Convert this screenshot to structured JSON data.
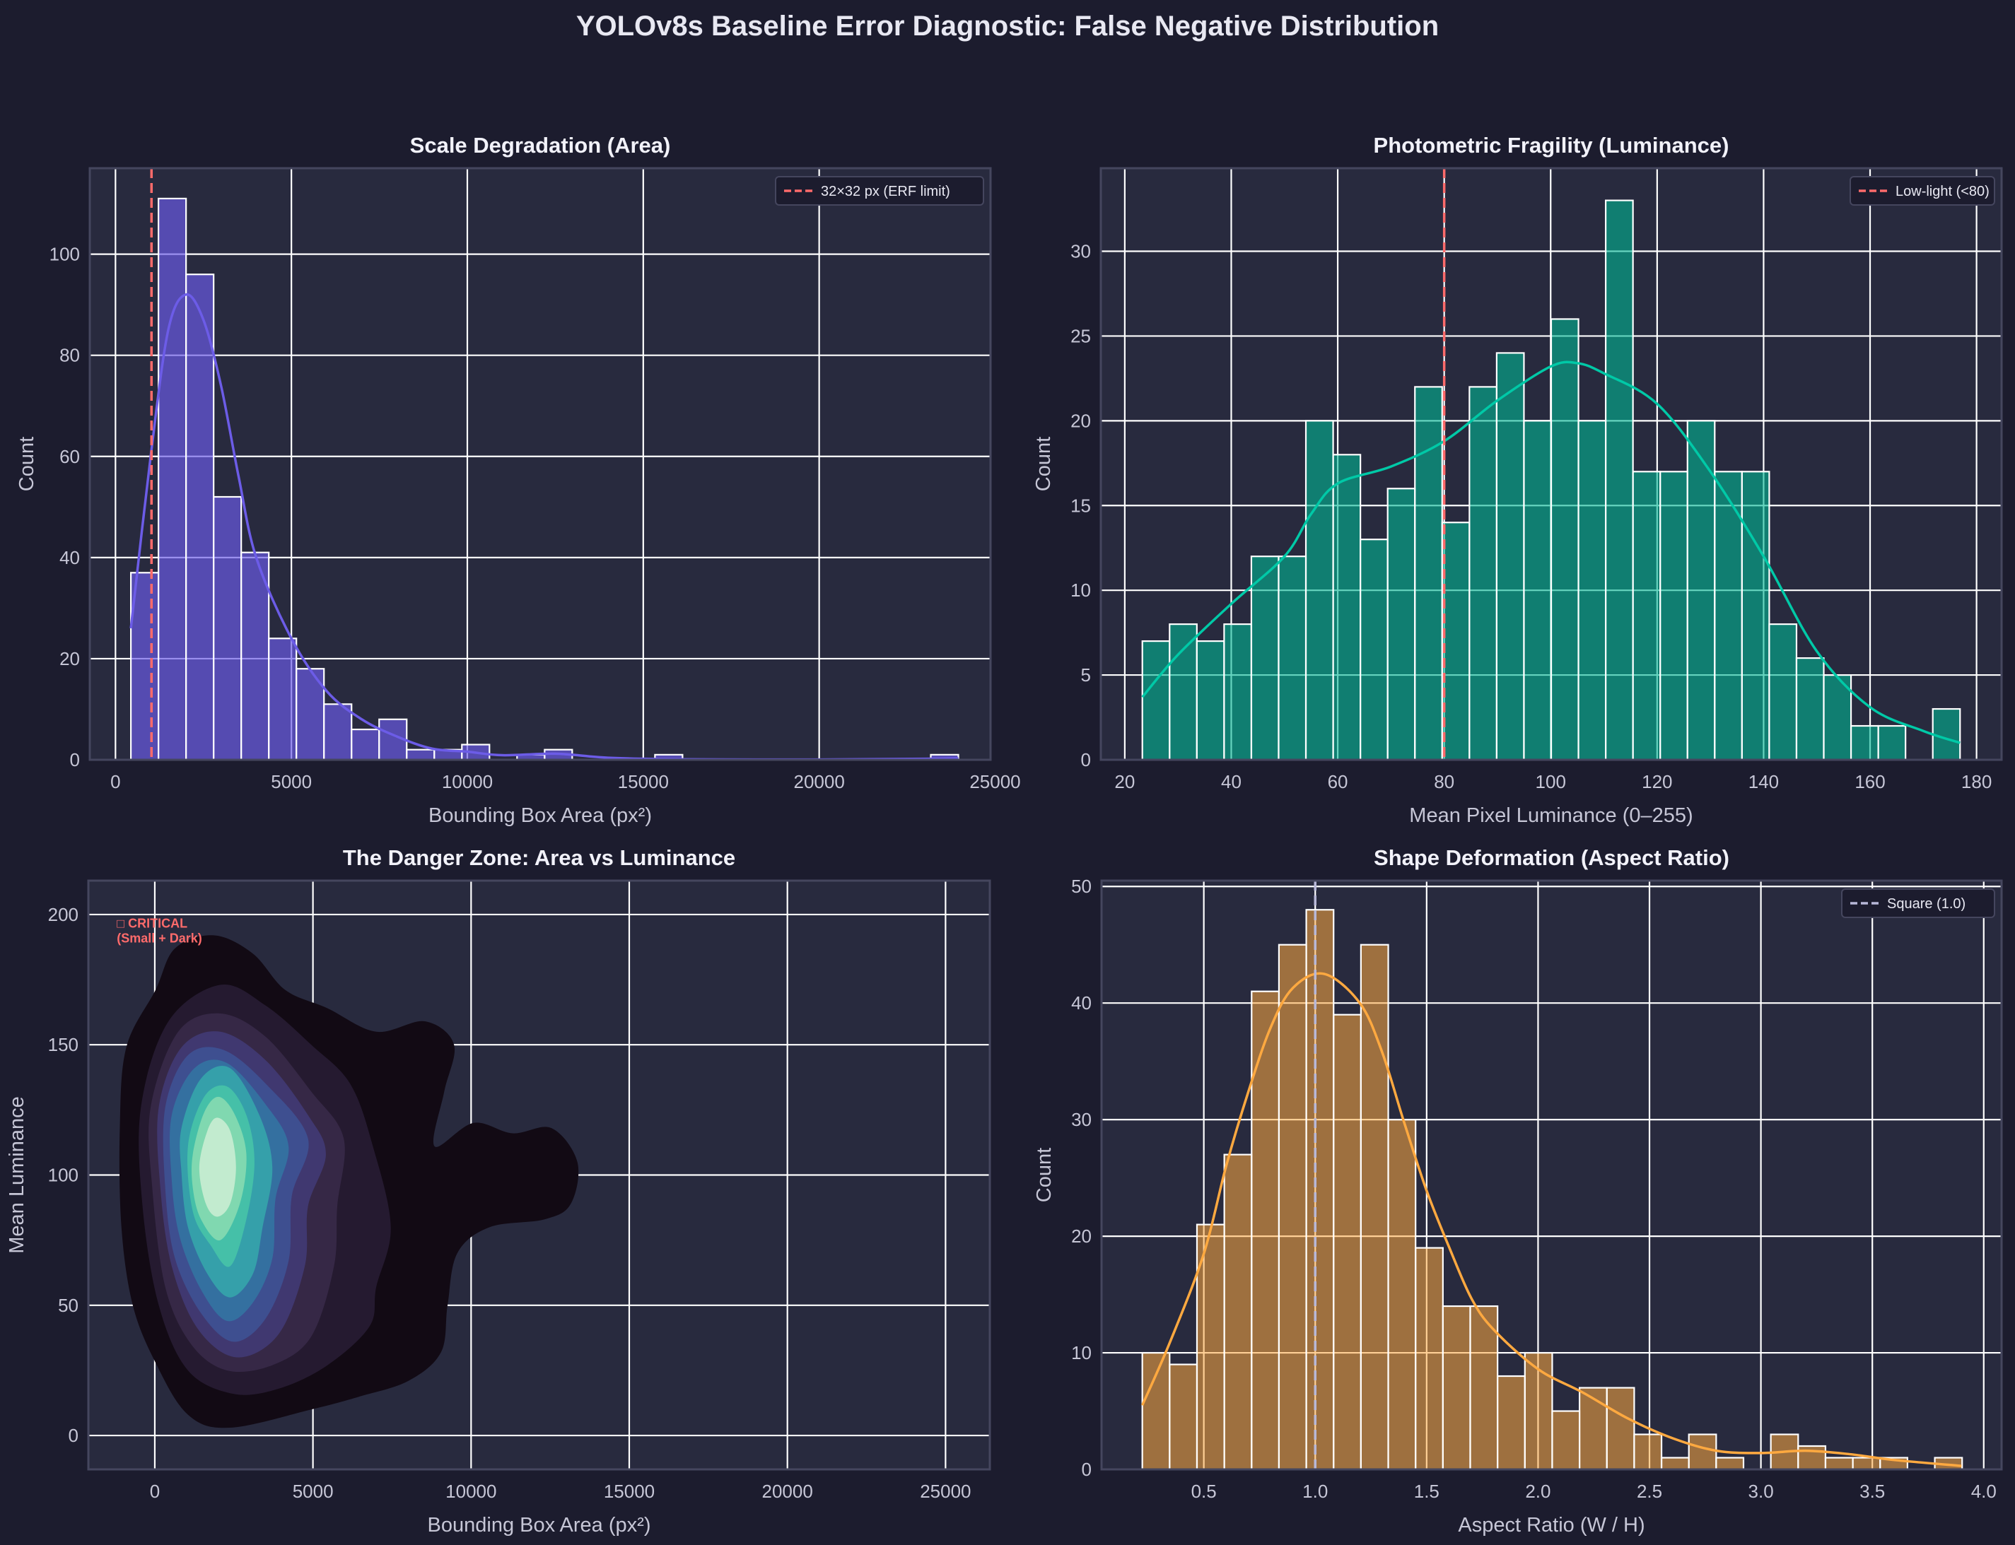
{
  "figure": {
    "title": "YOLOv8s Baseline Error Diagnostic: False Negative Distribution",
    "background": "#1c1c2e",
    "axes_background": "#282a3e",
    "grid_color": "#ffffff"
  },
  "chart_data": [
    {
      "id": "area",
      "type": "bar",
      "title": "Scale Degradation (Area)",
      "xlabel": "Bounding Box Area (px²)",
      "ylabel": "Count",
      "xlim": [
        -730,
        24870
      ],
      "ylim": [
        0,
        117
      ],
      "xticks": [
        0,
        5000,
        10000,
        15000,
        20000,
        25000
      ],
      "yticks": [
        0,
        20,
        40,
        60,
        80,
        100
      ],
      "grid": true,
      "bin_range": [
        438,
        23956
      ],
      "counts": [
        37,
        111,
        96,
        52,
        41,
        24,
        18,
        11,
        6,
        8,
        2,
        2,
        3,
        0,
        1,
        2,
        0,
        0,
        0,
        1,
        0,
        0,
        0,
        0,
        0,
        0,
        0,
        0,
        0,
        1
      ],
      "bar_color": "#6c5ce7",
      "kde_color": "#6c5ce7",
      "kde": [
        [
          438,
          26
        ],
        [
          1000,
          60
        ],
        [
          1500,
          85
        ],
        [
          2000,
          92
        ],
        [
          2500,
          87
        ],
        [
          3000,
          74
        ],
        [
          3500,
          56
        ],
        [
          4000,
          40
        ],
        [
          5000,
          24
        ],
        [
          6000,
          13.6
        ],
        [
          7000,
          8
        ],
        [
          8000,
          4.6
        ],
        [
          9000,
          2.2
        ],
        [
          10000,
          1.6
        ],
        [
          11000,
          0.9
        ],
        [
          12500,
          1.2
        ],
        [
          14000,
          0.4
        ],
        [
          16000,
          0.1
        ],
        [
          20000,
          0.05
        ],
        [
          23000,
          0.2
        ],
        [
          23956,
          0.3
        ]
      ],
      "reference_line": {
        "x": 1024,
        "label": "32×32 px (ERF limit)",
        "color": "#ff6b6b"
      },
      "legend": "top-right"
    },
    {
      "id": "luminance",
      "type": "bar",
      "title": "Photometric Fragility (Luminance)",
      "xlabel": "Mean Pixel Luminance (0–255)",
      "ylabel": "Count",
      "xlim": [
        15.5,
        184.7
      ],
      "ylim": [
        0,
        34.9
      ],
      "xticks": [
        20,
        40,
        60,
        80,
        100,
        120,
        140,
        160,
        180
      ],
      "yticks": [
        0,
        5,
        10,
        15,
        20,
        25,
        30
      ],
      "grid": true,
      "bin_range": [
        23.3,
        176.9
      ],
      "counts": [
        7,
        8,
        7,
        8,
        12,
        12,
        20,
        18,
        13,
        16,
        22,
        14,
        22,
        24,
        20,
        26,
        20,
        33,
        17,
        17,
        20,
        17,
        17,
        8,
        6,
        5,
        2,
        2,
        0,
        3
      ],
      "bar_color": "#00b894",
      "kde_color": "#00c9a7",
      "kde": [
        [
          23.3,
          3.7
        ],
        [
          30,
          6.2
        ],
        [
          40,
          9.2
        ],
        [
          50,
          12
        ],
        [
          55,
          14.5
        ],
        [
          60,
          16.3
        ],
        [
          70,
          17.3
        ],
        [
          80,
          18.8
        ],
        [
          90,
          21.2
        ],
        [
          100,
          23.2
        ],
        [
          105,
          23.4
        ],
        [
          110,
          22.8
        ],
        [
          120,
          21
        ],
        [
          130,
          17
        ],
        [
          140,
          12
        ],
        [
          150,
          6.4
        ],
        [
          160,
          3.1
        ],
        [
          170,
          1.7
        ],
        [
          176.9,
          1.0
        ]
      ],
      "reference_line": {
        "x": 80,
        "label": "Low-light (<80)",
        "color": "#ff6b6b"
      },
      "legend": "top-right"
    },
    {
      "id": "danger",
      "type": "contour",
      "title": "The Danger Zone: Area vs Luminance",
      "xlabel": "Bounding Box Area (px²)",
      "ylabel": "Mean Luminance",
      "xlim": [
        -2100,
        26400
      ],
      "ylim": [
        -13,
        213
      ],
      "xticks": [
        0,
        5000,
        10000,
        15000,
        20000,
        25000
      ],
      "yticks": [
        0,
        50,
        100,
        150,
        200
      ],
      "grid": true,
      "annotation": {
        "line1": "□ CRITICAL",
        "line2": "(Small + Dark)",
        "x": -1200,
        "y": 195,
        "color": "#ff6b6b"
      },
      "level_colors": [
        "#120a14",
        "#251a30",
        "#362846",
        "#403870",
        "#3e4f90",
        "#3470a0",
        "#35a0aa",
        "#45c0a8",
        "#80d8b0",
        "#c2ebcf"
      ],
      "levels": [
        [
          [
            -1106,
            118
          ],
          [
            -901,
            149
          ],
          [
            22,
            171
          ],
          [
            638,
            187
          ],
          [
            1869,
            192
          ],
          [
            3100,
            185
          ],
          [
            4126,
            171
          ],
          [
            5460,
            164
          ],
          [
            7000,
            155
          ],
          [
            8538,
            159
          ],
          [
            9460,
            150
          ],
          [
            9150,
            132
          ],
          [
            8845,
            111
          ],
          [
            10077,
            120
          ],
          [
            11308,
            116
          ],
          [
            12540,
            118
          ],
          [
            13360,
            105
          ],
          [
            13155,
            89
          ],
          [
            12334,
            83
          ],
          [
            10590,
            80
          ],
          [
            9564,
            70
          ],
          [
            9256,
            50
          ],
          [
            9050,
            32
          ],
          [
            8025,
            21
          ],
          [
            6486,
            15
          ],
          [
            4947,
            10
          ],
          [
            2382,
            3
          ],
          [
            1048,
            8
          ],
          [
            22,
            28
          ],
          [
            -696,
            50
          ],
          [
            -1055,
            80
          ]
        ],
        [
          [
            -439,
            126
          ],
          [
            433,
            159
          ],
          [
            2074,
            173
          ],
          [
            3510,
            165
          ],
          [
            4947,
            150
          ],
          [
            6178,
            135
          ],
          [
            6896,
            111
          ],
          [
            7461,
            80
          ],
          [
            7000,
            57
          ],
          [
            6794,
            42
          ],
          [
            5460,
            27
          ],
          [
            3921,
            18
          ],
          [
            2485,
            16
          ],
          [
            1048,
            25
          ],
          [
            125,
            50
          ],
          [
            -388,
            88
          ]
        ],
        [
          [
            -132,
            126
          ],
          [
            740,
            155
          ],
          [
            2074,
            162
          ],
          [
            3510,
            153
          ],
          [
            4947,
            132
          ],
          [
            5973,
            114
          ],
          [
            5768,
            88
          ],
          [
            5665,
            65
          ],
          [
            4947,
            38
          ],
          [
            3716,
            27
          ],
          [
            2279,
            25
          ],
          [
            1150,
            35
          ],
          [
            330,
            57
          ],
          [
            -80,
            95
          ]
        ],
        [
          [
            125,
            126
          ],
          [
            843,
            149
          ],
          [
            2074,
            155
          ],
          [
            3510,
            144
          ],
          [
            4844,
            123
          ],
          [
            5409,
            108
          ],
          [
            4844,
            88
          ],
          [
            4742,
            65
          ],
          [
            3921,
            39
          ],
          [
            2587,
            30
          ],
          [
            1356,
            41
          ],
          [
            535,
            65
          ],
          [
            176,
            95
          ]
        ],
        [
          [
            330,
            126
          ],
          [
            1048,
            146
          ],
          [
            2177,
            148
          ],
          [
            3510,
            135
          ],
          [
            4844,
            114
          ],
          [
            4331,
            92
          ],
          [
            4229,
            67
          ],
          [
            3510,
            45
          ],
          [
            2485,
            36
          ],
          [
            1459,
            47
          ],
          [
            638,
            68
          ],
          [
            330,
            95
          ]
        ],
        [
          [
            535,
            123
          ],
          [
            1253,
            141
          ],
          [
            2279,
            143
          ],
          [
            3510,
            127
          ],
          [
            4229,
            111
          ],
          [
            3818,
            91
          ],
          [
            3716,
            68
          ],
          [
            3100,
            51
          ],
          [
            2279,
            44
          ],
          [
            1459,
            56
          ],
          [
            792,
            76
          ],
          [
            535,
            98
          ]
        ],
        [
          [
            843,
            118
          ],
          [
            1459,
            137
          ],
          [
            2382,
            141
          ],
          [
            3305,
            123
          ],
          [
            3716,
            103
          ],
          [
            3408,
            80
          ],
          [
            3100,
            62
          ],
          [
            2382,
            53
          ],
          [
            1664,
            62
          ],
          [
            1048,
            80
          ],
          [
            843,
            101
          ]
        ],
        [
          [
            1048,
            111
          ],
          [
            1561,
            130
          ],
          [
            2279,
            134
          ],
          [
            2895,
            123
          ],
          [
            3151,
            105
          ],
          [
            2895,
            83
          ],
          [
            2382,
            65
          ],
          [
            1767,
            73
          ],
          [
            1202,
            86
          ]
        ],
        [
          [
            1202,
            108
          ],
          [
            1561,
            124
          ],
          [
            2023,
            130
          ],
          [
            2536,
            123
          ],
          [
            2895,
            108
          ],
          [
            2690,
            89
          ],
          [
            2074,
            75
          ],
          [
            1459,
            83
          ],
          [
            1202,
            95
          ]
        ],
        [
          [
            1407,
            103
          ],
          [
            1664,
            117
          ],
          [
            1972,
            122
          ],
          [
            2382,
            117
          ],
          [
            2567,
            103
          ],
          [
            2382,
            89
          ],
          [
            1972,
            84
          ],
          [
            1613,
            89
          ]
        ]
      ]
    },
    {
      "id": "aspect",
      "type": "bar",
      "title": "Shape Deformation (Aspect Ratio)",
      "xlabel": "Aspect Ratio (W / H)",
      "ylabel": "Count",
      "xlim": [
        0.041,
        4.08
      ],
      "ylim": [
        0,
        50.5
      ],
      "xticks": [
        0.5,
        1.0,
        1.5,
        2.0,
        2.5,
        3.0,
        3.5,
        4.0
      ],
      "yticks": [
        0,
        10,
        20,
        30,
        40,
        50
      ],
      "grid": true,
      "bin_range": [
        0.224,
        3.903
      ],
      "counts": [
        10,
        9,
        21,
        27,
        41,
        45,
        48,
        39,
        45,
        30,
        19,
        14,
        14,
        8,
        10,
        5,
        7,
        7,
        3,
        1,
        3,
        1,
        0,
        3,
        2,
        1,
        1,
        1,
        0,
        1
      ],
      "bar_color": "#ffa940",
      "kde_color": "#ffa940",
      "kde": [
        [
          0.224,
          5.5
        ],
        [
          0.35,
          11
        ],
        [
          0.5,
          18.5
        ],
        [
          0.6,
          26
        ],
        [
          0.7,
          32.4
        ],
        [
          0.8,
          37.9
        ],
        [
          0.9,
          41.3
        ],
        [
          1.04,
          42.5
        ],
        [
          1.2,
          40
        ],
        [
          1.3,
          35.8
        ],
        [
          1.4,
          29.7
        ],
        [
          1.5,
          23.9
        ],
        [
          1.6,
          19.1
        ],
        [
          1.7,
          14.7
        ],
        [
          1.8,
          12
        ],
        [
          2.0,
          8.6
        ],
        [
          2.2,
          6.6
        ],
        [
          2.4,
          4.4
        ],
        [
          2.6,
          2.7
        ],
        [
          2.8,
          1.6
        ],
        [
          3.0,
          1.4
        ],
        [
          3.2,
          1.6
        ],
        [
          3.4,
          1.3
        ],
        [
          3.6,
          0.8
        ],
        [
          3.9,
          0.3
        ]
      ],
      "reference_line": {
        "x": 1.0,
        "label": "Square (1.0)",
        "color": "#b8b8d8"
      },
      "legend": "top-right"
    }
  ]
}
